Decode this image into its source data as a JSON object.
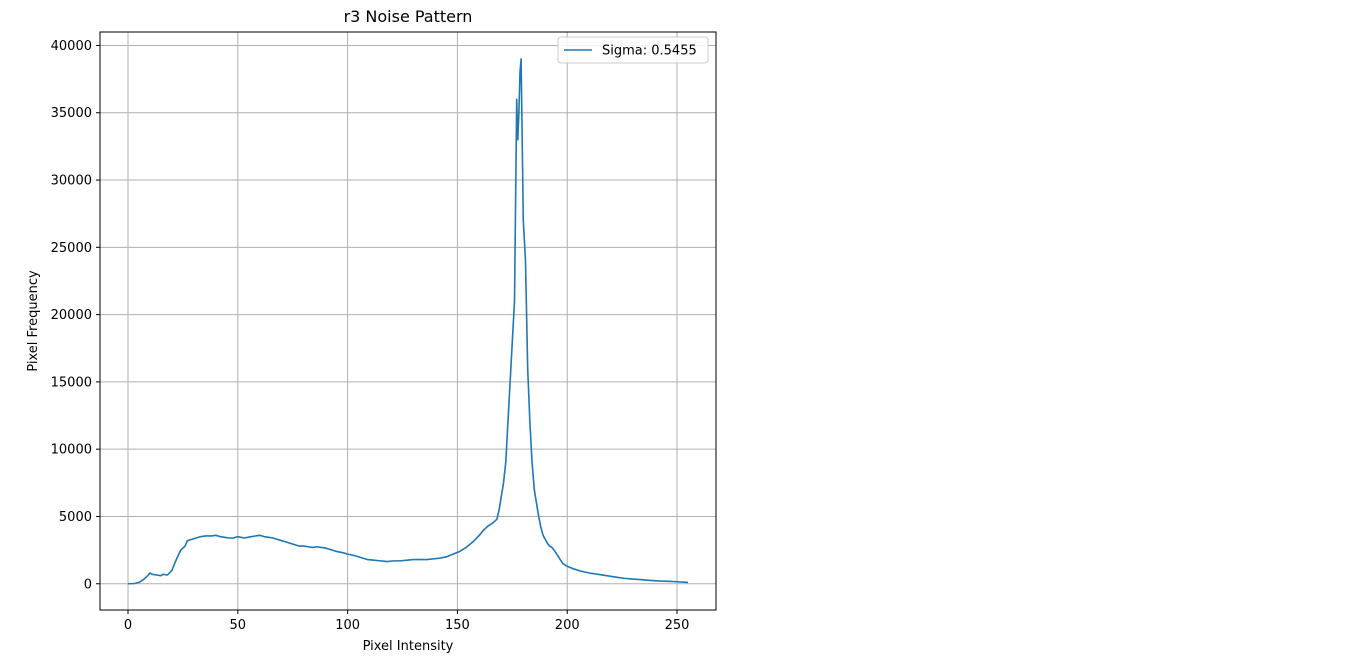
{
  "chart_data": {
    "type": "line",
    "title": "r3 Noise Pattern",
    "xlabel": "Pixel Intensity",
    "ylabel": "Pixel Frequency",
    "xlim": [
      -12.75,
      267.75
    ],
    "ylim": [
      -1950,
      41000
    ],
    "xticks": [
      0,
      50,
      100,
      150,
      200,
      250
    ],
    "yticks": [
      0,
      5000,
      10000,
      15000,
      20000,
      25000,
      30000,
      35000,
      40000
    ],
    "grid": true,
    "legend_position": "top-right",
    "series": [
      {
        "name": "Sigma: 0.5455",
        "color": "#1f77b4",
        "x": [
          0,
          3,
          5,
          7,
          9,
          10,
          11,
          13,
          15,
          16,
          18,
          20,
          22,
          24,
          26,
          27,
          29,
          31,
          33,
          35,
          38,
          40,
          42,
          44,
          46,
          48,
          50,
          53,
          56,
          58,
          60,
          62,
          64,
          66,
          68,
          70,
          72,
          74,
          76,
          78,
          80,
          82,
          84,
          86,
          88,
          90,
          92,
          95,
          98,
          100,
          103,
          106,
          109,
          112,
          115,
          118,
          121,
          124,
          127,
          130,
          133,
          136,
          139,
          142,
          145,
          148,
          151,
          154,
          157,
          160,
          162,
          164,
          166,
          168,
          169,
          170,
          171,
          172,
          173,
          174,
          175,
          176,
          177,
          177.5,
          178,
          178.5,
          179,
          180,
          181,
          182,
          183,
          184,
          185,
          186,
          187,
          188,
          189,
          190,
          191,
          192,
          193,
          194,
          196,
          198,
          200,
          203,
          206,
          210,
          214,
          218,
          222,
          226,
          230,
          234,
          238,
          242,
          246,
          250,
          253,
          255
        ],
        "y": [
          0,
          20,
          100,
          300,
          600,
          800,
          700,
          650,
          600,
          700,
          650,
          1000,
          1800,
          2500,
          2800,
          3200,
          3300,
          3400,
          3500,
          3550,
          3550,
          3600,
          3500,
          3450,
          3400,
          3400,
          3500,
          3400,
          3500,
          3550,
          3600,
          3500,
          3450,
          3400,
          3300,
          3200,
          3100,
          3000,
          2900,
          2800,
          2800,
          2750,
          2700,
          2750,
          2700,
          2650,
          2550,
          2400,
          2300,
          2200,
          2100,
          1950,
          1800,
          1750,
          1700,
          1650,
          1700,
          1700,
          1750,
          1800,
          1800,
          1800,
          1850,
          1900,
          2000,
          2200,
          2400,
          2700,
          3100,
          3600,
          4000,
          4300,
          4500,
          4800,
          5500,
          6500,
          7500,
          9000,
          12000,
          15000,
          18000,
          21000,
          36000,
          33000,
          35000,
          38000,
          39000,
          27000,
          24000,
          16000,
          12000,
          9000,
          7000,
          6000,
          5000,
          4200,
          3600,
          3300,
          3000,
          2800,
          2700,
          2500,
          2000,
          1500,
          1300,
          1100,
          950,
          800,
          700,
          600,
          500,
          400,
          350,
          300,
          250,
          200,
          180,
          150,
          120,
          100
        ]
      }
    ]
  }
}
